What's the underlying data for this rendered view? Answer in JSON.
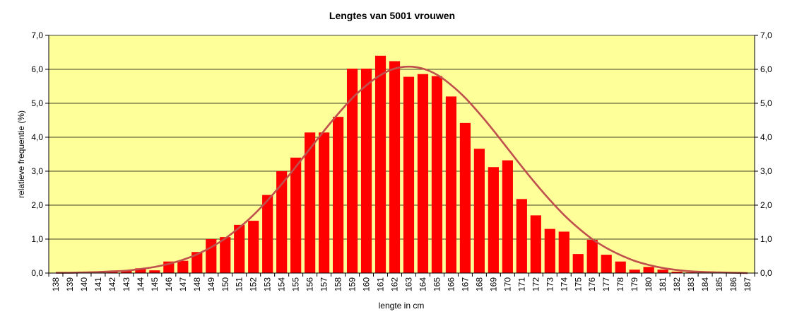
{
  "chart_data": {
    "type": "bar",
    "title": "Lengtes van 5001 vrouwen",
    "xlabel": "lengte in cm",
    "ylabel": "relatieve frequentie (%)",
    "ylim": [
      0,
      7
    ],
    "yticks": [
      "0,0",
      "1,0",
      "2,0",
      "3,0",
      "4,0",
      "5,0",
      "6,0",
      "7,0"
    ],
    "y_axis_right": true,
    "grid": true,
    "categories": [
      "138",
      "139",
      "140",
      "141",
      "142",
      "143",
      "144",
      "145",
      "146",
      "147",
      "148",
      "149",
      "150",
      "151",
      "152",
      "153",
      "154",
      "155",
      "156",
      "157",
      "158",
      "159",
      "160",
      "161",
      "162",
      "163",
      "164",
      "165",
      "166",
      "167",
      "168",
      "169",
      "170",
      "171",
      "172",
      "173",
      "174",
      "175",
      "176",
      "177",
      "178",
      "179",
      "180",
      "181",
      "182",
      "183",
      "184",
      "185",
      "186",
      "187"
    ],
    "series": [
      {
        "type": "bar",
        "values": [
          0.0,
          0.02,
          0.02,
          0.04,
          0.06,
          0.06,
          0.14,
          0.08,
          0.34,
          0.36,
          0.62,
          1.0,
          1.06,
          1.42,
          1.54,
          2.3,
          3.0,
          3.4,
          4.14,
          4.14,
          4.6,
          6.02,
          6.02,
          6.4,
          6.24,
          5.78,
          5.86,
          5.8,
          5.2,
          4.42,
          3.66,
          3.12,
          3.32,
          2.18,
          1.7,
          1.3,
          1.22,
          0.56,
          0.98,
          0.54,
          0.34,
          0.1,
          0.18,
          0.1,
          0.04,
          0.02,
          0.02,
          0.02,
          0.0,
          0.0
        ]
      },
      {
        "type": "line",
        "values": [
          0.01,
          0.01,
          0.02,
          0.03,
          0.05,
          0.07,
          0.12,
          0.18,
          0.27,
          0.39,
          0.55,
          0.76,
          1.02,
          1.34,
          1.71,
          2.14,
          2.62,
          3.13,
          3.66,
          4.19,
          4.69,
          5.15,
          5.53,
          5.83,
          6.02,
          6.08,
          6.02,
          5.84,
          5.54,
          5.16,
          4.7,
          4.2,
          3.67,
          3.14,
          2.63,
          2.15,
          1.71,
          1.33,
          1.0,
          0.74,
          0.53,
          0.36,
          0.24,
          0.15,
          0.09,
          0.05,
          0.03,
          0.02,
          0.01,
          0.0
        ]
      }
    ]
  },
  "colors": {
    "plot_background": "#FFFF99",
    "bar_fill": "#FF0000",
    "curve": "#C0504D",
    "gridline": "#000000"
  }
}
